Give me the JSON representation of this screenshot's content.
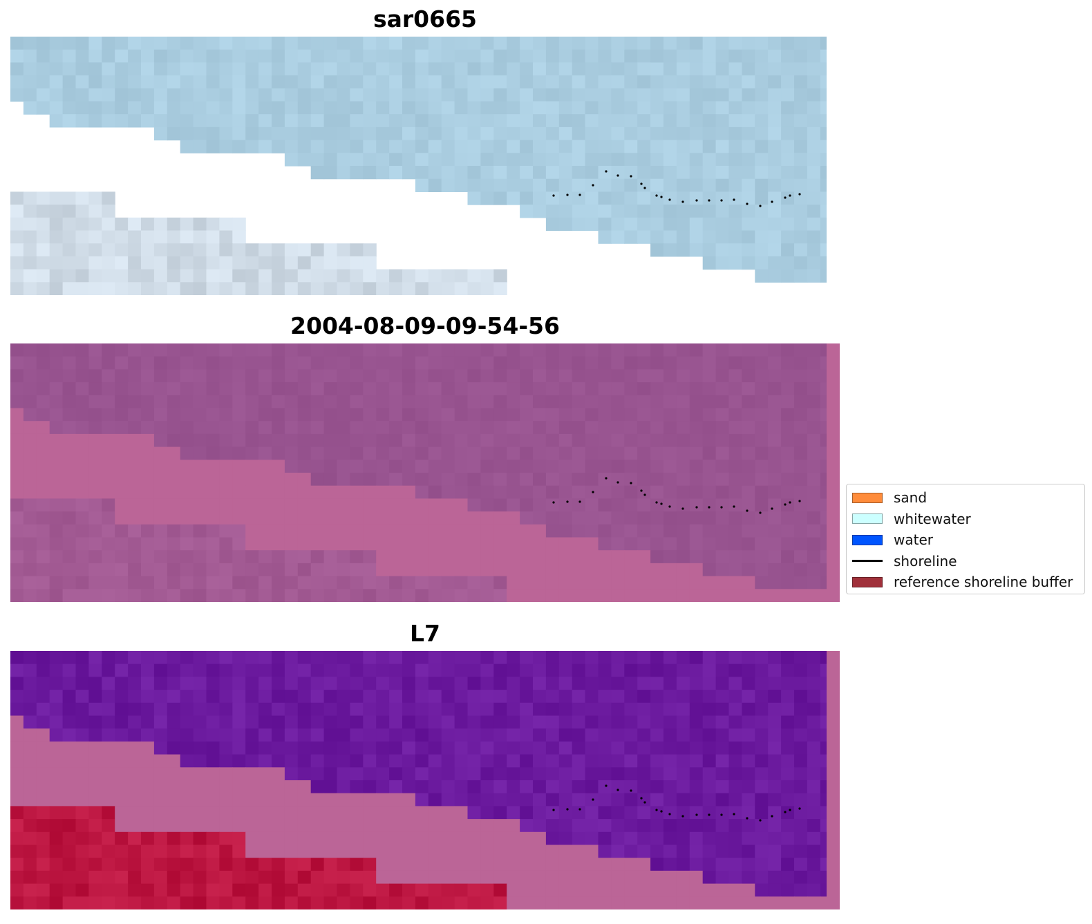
{
  "panels": [
    {
      "title": "sar0665",
      "palette": "sar"
    },
    {
      "title": "2004-08-09-09-54-56",
      "palette": "class"
    },
    {
      "title": "L7",
      "palette": "l7"
    }
  ],
  "legend": {
    "items": [
      {
        "label": "sand",
        "kind": "patch",
        "color": "#ff8c3b"
      },
      {
        "label": "whitewater",
        "kind": "patch",
        "color": "#ccffff"
      },
      {
        "label": "water",
        "kind": "patch",
        "color": "#0055ff"
      },
      {
        "label": "shoreline",
        "kind": "line",
        "color": "#000000"
      },
      {
        "label": "reference shoreline buffer",
        "kind": "patch",
        "color": "#a0303a"
      }
    ]
  },
  "colors": {
    "sar_water": "#aacde0",
    "sar_land": "#cfdbe6",
    "class_water": "#985490",
    "class_buffer": "#bb6597",
    "l7_water": "#6b1a9e",
    "l7_land": "#bb1540",
    "shoreline_dot": "#000000"
  }
}
